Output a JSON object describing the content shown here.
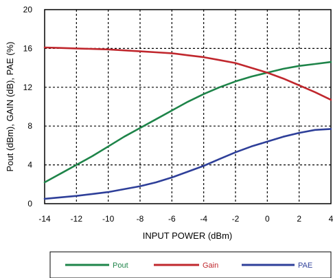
{
  "chart_data": {
    "type": "line",
    "xlabel": "INPUT POWER (dBm)",
    "ylabel": "Pout (dBm), GAIN (dB), PAE (%)",
    "xlim": [
      -14,
      4
    ],
    "ylim": [
      0,
      20
    ],
    "xticks": [
      "-14",
      "-12",
      "-10",
      "-8",
      "-6",
      "-4",
      "-2",
      "0",
      "2",
      "4"
    ],
    "yticks": [
      "0",
      "4",
      "8",
      "12",
      "16",
      "20"
    ],
    "grid": "dotted",
    "legend_position": "bottom",
    "x": [
      -14,
      -13,
      -12,
      -11,
      -10,
      -9,
      -8,
      -7,
      -6,
      -5,
      -4,
      -3,
      -2,
      -1,
      0,
      1,
      2,
      3,
      4
    ],
    "series": [
      {
        "name": "Pout",
        "color": "#1e8449",
        "values": [
          2.2,
          3.1,
          4.0,
          4.9,
          5.9,
          6.9,
          7.8,
          8.7,
          9.6,
          10.5,
          11.3,
          12.0,
          12.6,
          13.1,
          13.5,
          13.9,
          14.2,
          14.4,
          14.6
        ]
      },
      {
        "name": "Gain",
        "color": "#c0272d",
        "values": [
          16.1,
          16.05,
          16.0,
          15.95,
          15.9,
          15.8,
          15.7,
          15.6,
          15.5,
          15.3,
          15.1,
          14.8,
          14.5,
          14.0,
          13.5,
          12.9,
          12.2,
          11.5,
          10.7
        ]
      },
      {
        "name": "PAE",
        "color": "#2e3f99",
        "values": [
          0.5,
          0.65,
          0.8,
          1.0,
          1.2,
          1.5,
          1.8,
          2.2,
          2.7,
          3.3,
          3.9,
          4.6,
          5.3,
          5.9,
          6.4,
          6.9,
          7.3,
          7.6,
          7.7
        ]
      }
    ]
  }
}
